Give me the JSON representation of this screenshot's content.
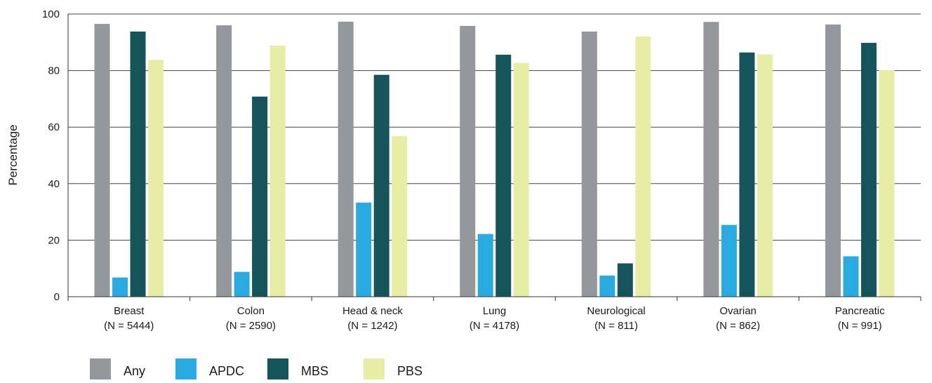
{
  "chart_data": {
    "type": "bar",
    "ylabel": "Percentage",
    "xlabel": "",
    "ylim": [
      0,
      100
    ],
    "yticks": [
      0,
      20,
      40,
      60,
      80,
      100
    ],
    "grid": true,
    "legend_position": "bottom-left",
    "categories": [
      "Breast",
      "Colon",
      "Head & neck",
      "Lung",
      "Neurological",
      "Ovarian",
      "Pancreatic"
    ],
    "category_n": [
      "(N = 5444)",
      "(N = 2590)",
      "(N = 1242)",
      "(N = 4178)",
      "(N = 811)",
      "(N = 862)",
      "(N = 991)"
    ],
    "series": [
      {
        "name": "Any",
        "color": "#94979c",
        "values": [
          96.5,
          96,
          97.3,
          95.8,
          93.8,
          97.2,
          96.3
        ]
      },
      {
        "name": "APDC",
        "color": "#29abe2",
        "values": [
          6.8,
          8.8,
          33.3,
          22.2,
          7.5,
          25.4,
          14.3
        ]
      },
      {
        "name": "MBS",
        "color": "#14545a",
        "values": [
          93.8,
          70.8,
          78.5,
          85.6,
          11.8,
          86.4,
          89.8
        ]
      },
      {
        "name": "PBS",
        "color": "#e8eda6",
        "values": [
          83.8,
          88.8,
          56.8,
          82.7,
          92.1,
          85.7,
          80.2
        ]
      }
    ]
  }
}
